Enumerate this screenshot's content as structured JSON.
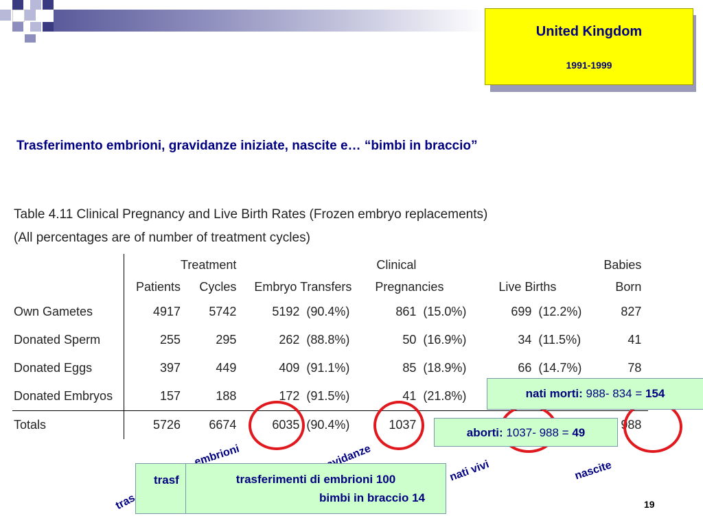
{
  "header": {
    "country": "United Kingdom",
    "years": "1991-1999"
  },
  "subtitle": "Trasferimento embrioni, gravidanze iniziate, nascite e… “bimbi in braccio”",
  "table": {
    "caption_line1": "Table 4.11  Clinical Pregnancy and Live Birth Rates (Frozen embryo replacements)",
    "caption_line2": "(All percentages are of number of treatment cycles)",
    "header_top": [
      "",
      "",
      "Treatment",
      "",
      "",
      "Clinical",
      "",
      "",
      "",
      "Babies"
    ],
    "header_bottom": [
      "",
      "Patients",
      "Cycles",
      "Embryo Transfers",
      "",
      "Pregnancies",
      "",
      "Live Births",
      "",
      "Born"
    ],
    "rows": [
      [
        "Own Gametes",
        "4917",
        "5742",
        "5192",
        "(90.4%)",
        "861",
        "(15.0%)",
        "699",
        "(12.2%)",
        "827"
      ],
      [
        "Donated Sperm",
        "255",
        "295",
        "262",
        "(88.8%)",
        "50",
        "(16.9%)",
        "34",
        "(11.5%)",
        "41"
      ],
      [
        "Donated Eggs",
        "397",
        "449",
        "409",
        "(91.1%)",
        "85",
        "(18.9%)",
        "66",
        "(14.7%)",
        "78"
      ],
      [
        "Donated Embryos",
        "157",
        "188",
        "172",
        "(91.5%)",
        "41",
        "(21.8%)",
        "",
        "",
        ""
      ],
      [
        "Totals",
        "5726",
        "6674",
        "6035",
        "(90.4%)",
        "1037",
        "",
        "",
        "",
        "988"
      ]
    ]
  },
  "labels": {
    "embrioni": "embrioni",
    "gravidanze": "gravidanze",
    "nati_vivi": "nati vivi",
    "nascite": "nascite",
    "tras": "tras"
  },
  "boxes": {
    "nati_morti_label": "nati morti:",
    "nati_morti_expr": "988- 834 =",
    "nati_morti_value": "154",
    "aborti_label": "aborti:",
    "aborti_expr": "1037- 988 =",
    "aborti_value": "49",
    "back_box_text": "trasf",
    "front_line1": "trasferimenti di embrioni  100",
    "front_line2": "bimbi in braccio   14"
  },
  "slide_number": "19",
  "colors": {
    "navy_text": "#000080",
    "highlight_yellow": "#ffff00",
    "circle_red": "#e0191f",
    "box_green": "#ccffcc"
  }
}
